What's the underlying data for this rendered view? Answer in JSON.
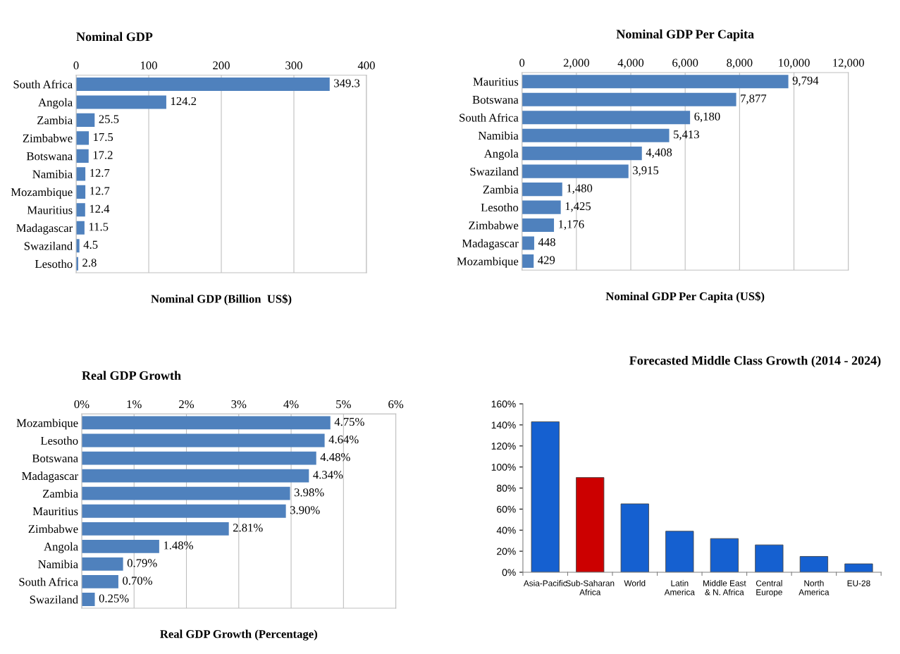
{
  "chart_data": [
    {
      "type": "bar",
      "orientation": "horizontal",
      "title": "Nominal GDP",
      "xlabel": "Nominal GDP (Billion  US$)",
      "categories": [
        "South Africa",
        "Angola",
        "Zambia",
        "Zimbabwe",
        "Botswana",
        "Namibia",
        "Mozambique",
        "Mauritius",
        "Madagascar",
        "Swaziland",
        "Lesotho"
      ],
      "values": [
        349.3,
        124.2,
        25.5,
        17.5,
        17.2,
        12.7,
        12.7,
        12.4,
        11.5,
        4.5,
        2.8
      ],
      "color": "#4f81bd",
      "xlim": [
        0,
        400
      ],
      "xticks": [
        0,
        100,
        200,
        300,
        400
      ],
      "grid": "x",
      "data_labels": true
    },
    {
      "type": "bar",
      "orientation": "horizontal",
      "title": "Nominal GDP Per Capita",
      "xlabel": "Nominal GDP Per Capita (US$)",
      "categories": [
        "Mauritius",
        "Botswana",
        "South Africa",
        "Namibia",
        "Angola",
        "Swaziland",
        "Zambia",
        "Lesotho",
        "Zimbabwe",
        "Madagascar",
        "Mozambique"
      ],
      "values": [
        9794,
        7877,
        6180,
        5413,
        4408,
        3915,
        1480,
        1425,
        1176,
        448,
        429
      ],
      "value_labels": [
        "9,794",
        "7,877",
        "6,180",
        "5,413",
        "4,408",
        "3,915",
        "1,480",
        "1,425",
        "1,176",
        "448",
        "429"
      ],
      "color": "#4f81bd",
      "xlim": [
        0,
        12000
      ],
      "xticks": [
        0,
        {
          "value": 2000,
          "label": "2,000"
        },
        {
          "value": 4000,
          "label": "4,000"
        },
        {
          "value": 6000,
          "label": "6,000"
        },
        {
          "value": 8000,
          "label": "8,000"
        },
        {
          "value": 10000,
          "label": "10,000"
        },
        {
          "value": 12000,
          "label": "12,000"
        }
      ],
      "grid": "x"
    },
    {
      "type": "bar",
      "orientation": "horizontal",
      "title": "Real GDP Growth",
      "xlabel": "Real GDP Growth (Percentage)",
      "categories": [
        "Mozambique",
        "Lesotho",
        "Botswana",
        "Madagascar",
        "Zambia",
        "Mauritius",
        "Zimbabwe",
        "Angola",
        "Namibia",
        "South Africa",
        "Swaziland"
      ],
      "values": [
        4.75,
        4.64,
        4.48,
        4.34,
        3.98,
        3.9,
        2.81,
        1.48,
        0.79,
        0.7,
        0.25
      ],
      "value_labels": [
        "4.75%",
        "4.64%",
        "4.48%",
        "4.34%",
        "3.98%",
        "3.90%",
        "2.81%",
        "1.48%",
        "0.79%",
        "0.70%",
        "0.25%"
      ],
      "color": "#4f81bd",
      "xlim": [
        0,
        6
      ],
      "xticks": [
        {
          "value": 0,
          "label": "0%"
        },
        {
          "value": 1,
          "label": "1%"
        },
        {
          "value": 2,
          "label": "2%"
        },
        {
          "value": 3,
          "label": "3%"
        },
        {
          "value": 4,
          "label": "4%"
        },
        {
          "value": 5,
          "label": "5%"
        },
        {
          "value": 6,
          "label": "6%"
        }
      ],
      "grid": "x"
    },
    {
      "type": "bar",
      "title": "Forecasted Middle Class Growth (2014 - 2024)",
      "categories": [
        "Asia-Pacific",
        "Sub-Saharan\nAfrica",
        "World",
        "Latin\nAmerica",
        "Middle East\n& N. Africa",
        "Central\nEurope",
        "North\nAmerica",
        "EU-28"
      ],
      "values": [
        143,
        90,
        65,
        39,
        32,
        26,
        15,
        8
      ],
      "colors": [
        "#1560d0",
        "#cc0000",
        "#1560d0",
        "#1560d0",
        "#1560d0",
        "#1560d0",
        "#1560d0",
        "#1560d0"
      ],
      "ylim": [
        0,
        160
      ],
      "yticks": [
        {
          "value": 0,
          "label": "0%"
        },
        {
          "value": 20,
          "label": "20%"
        },
        {
          "value": 40,
          "label": "40%"
        },
        {
          "value": 60,
          "label": "60%"
        },
        {
          "value": 80,
          "label": "80%"
        },
        {
          "value": 100,
          "label": "100%"
        },
        {
          "value": 120,
          "label": "120%"
        },
        {
          "value": 140,
          "label": "140%"
        },
        {
          "value": 160,
          "label": "160%"
        }
      ],
      "grid": false
    }
  ]
}
